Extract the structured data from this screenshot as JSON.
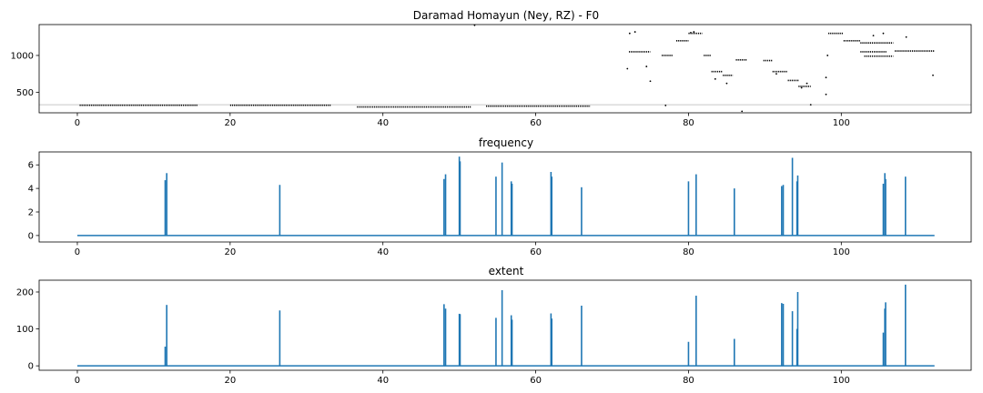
{
  "chart_data": [
    {
      "type": "scatter",
      "title": "Daramad Homayun (Ney, RZ) - F0",
      "xlabel": "",
      "ylabel": "",
      "xlim": [
        -5,
        117
      ],
      "ylim": [
        220,
        1420
      ],
      "xticks": [
        0,
        20,
        40,
        60,
        80,
        100
      ],
      "yticks": [
        500,
        1000
      ],
      "grid": false,
      "reference_line": 330,
      "segments": [
        {
          "x0": 0.3,
          "x1": 15.8,
          "y": 323
        },
        {
          "x0": 20.0,
          "x1": 33.2,
          "y": 323
        },
        {
          "x0": 36.6,
          "x1": 51.5,
          "y": 300
        },
        {
          "x0": 53.5,
          "x1": 67.1,
          "y": 310
        },
        {
          "x0": 72.2,
          "x1": 75.0,
          "y": 1050
        },
        {
          "x0": 76.5,
          "x1": 78.0,
          "y": 1000
        },
        {
          "x0": 78.4,
          "x1": 80.0,
          "y": 1200
        },
        {
          "x0": 80.0,
          "x1": 81.8,
          "y": 1300
        },
        {
          "x0": 82.0,
          "x1": 83.0,
          "y": 1000
        },
        {
          "x0": 83.0,
          "x1": 84.5,
          "y": 780
        },
        {
          "x0": 84.5,
          "x1": 85.8,
          "y": 730
        },
        {
          "x0": 86.2,
          "x1": 87.6,
          "y": 940
        },
        {
          "x0": 89.8,
          "x1": 91.0,
          "y": 930
        },
        {
          "x0": 91.0,
          "x1": 93.0,
          "y": 780
        },
        {
          "x0": 93.0,
          "x1": 94.4,
          "y": 660
        },
        {
          "x0": 94.4,
          "x1": 96.0,
          "y": 580
        },
        {
          "x0": 98.3,
          "x1": 100.3,
          "y": 1300
        },
        {
          "x0": 100.3,
          "x1": 102.5,
          "y": 1200
        },
        {
          "x0": 102.5,
          "x1": 106.8,
          "y": 1170
        },
        {
          "x0": 102.5,
          "x1": 106.0,
          "y": 1050
        },
        {
          "x0": 103.0,
          "x1": 106.8,
          "y": 990
        },
        {
          "x0": 107.0,
          "x1": 112.2,
          "y": 1060
        }
      ],
      "points": [
        {
          "x": 72.0,
          "y": 820
        },
        {
          "x": 72.3,
          "y": 1300
        },
        {
          "x": 73.0,
          "y": 1320
        },
        {
          "x": 74.5,
          "y": 850
        },
        {
          "x": 75.0,
          "y": 650
        },
        {
          "x": 77.0,
          "y": 320
        },
        {
          "x": 80.3,
          "y": 1310
        },
        {
          "x": 80.7,
          "y": 1320
        },
        {
          "x": 83.5,
          "y": 680
        },
        {
          "x": 85.0,
          "y": 620
        },
        {
          "x": 87.0,
          "y": 240
        },
        {
          "x": 91.5,
          "y": 750
        },
        {
          "x": 94.8,
          "y": 560
        },
        {
          "x": 95.5,
          "y": 620
        },
        {
          "x": 96.0,
          "y": 330
        },
        {
          "x": 98.0,
          "y": 470
        },
        {
          "x": 98.0,
          "y": 700
        },
        {
          "x": 98.2,
          "y": 1000
        },
        {
          "x": 104.2,
          "y": 1270
        },
        {
          "x": 105.5,
          "y": 1300
        },
        {
          "x": 108.5,
          "y": 1250
        },
        {
          "x": 112.0,
          "y": 730
        },
        {
          "x": 52.0,
          "y": 1410
        }
      ]
    },
    {
      "type": "line",
      "title": "frequency",
      "xlabel": "",
      "ylabel": "",
      "xlim": [
        -5,
        117
      ],
      "ylim": [
        -0.55,
        7.1
      ],
      "xticks": [
        0,
        20,
        40,
        60,
        80,
        100
      ],
      "yticks": [
        0,
        2,
        4,
        6
      ],
      "grid": false,
      "baseline": 0,
      "x_end": 112.2,
      "spikes": [
        {
          "x": 11.5,
          "value": 4.7
        },
        {
          "x": 11.7,
          "value": 5.3
        },
        {
          "x": 26.5,
          "value": 4.3
        },
        {
          "x": 48.0,
          "value": 4.8
        },
        {
          "x": 48.2,
          "value": 5.2
        },
        {
          "x": 50.0,
          "value": 6.7
        },
        {
          "x": 50.1,
          "value": 6.3
        },
        {
          "x": 54.8,
          "value": 5.0
        },
        {
          "x": 55.6,
          "value": 6.2
        },
        {
          "x": 56.8,
          "value": 4.6
        },
        {
          "x": 56.9,
          "value": 4.4
        },
        {
          "x": 62.0,
          "value": 5.4
        },
        {
          "x": 62.1,
          "value": 5.0
        },
        {
          "x": 66.0,
          "value": 4.1
        },
        {
          "x": 80.0,
          "value": 4.6
        },
        {
          "x": 81.0,
          "value": 5.2
        },
        {
          "x": 86.0,
          "value": 4.0
        },
        {
          "x": 92.2,
          "value": 4.2
        },
        {
          "x": 92.4,
          "value": 4.3
        },
        {
          "x": 93.6,
          "value": 6.6
        },
        {
          "x": 94.2,
          "value": 4.6
        },
        {
          "x": 94.3,
          "value": 5.1
        },
        {
          "x": 105.5,
          "value": 4.4
        },
        {
          "x": 105.7,
          "value": 5.3
        },
        {
          "x": 105.8,
          "value": 4.8
        },
        {
          "x": 108.4,
          "value": 5.0
        }
      ]
    },
    {
      "type": "line",
      "title": "extent",
      "xlabel": "",
      "ylabel": "",
      "xlim": [
        -5,
        117
      ],
      "ylim": [
        -12,
        232
      ],
      "xticks": [
        0,
        20,
        40,
        60,
        80,
        100
      ],
      "yticks": [
        0,
        100,
        200
      ],
      "grid": false,
      "baseline": 0,
      "x_end": 112.2,
      "spikes": [
        {
          "x": 11.5,
          "value": 52
        },
        {
          "x": 11.7,
          "value": 165
        },
        {
          "x": 26.5,
          "value": 150
        },
        {
          "x": 48.0,
          "value": 167
        },
        {
          "x": 48.2,
          "value": 155
        },
        {
          "x": 50.0,
          "value": 141
        },
        {
          "x": 50.1,
          "value": 140
        },
        {
          "x": 54.8,
          "value": 130
        },
        {
          "x": 55.6,
          "value": 205
        },
        {
          "x": 56.8,
          "value": 137
        },
        {
          "x": 56.9,
          "value": 125
        },
        {
          "x": 62.0,
          "value": 142
        },
        {
          "x": 62.1,
          "value": 128
        },
        {
          "x": 66.0,
          "value": 163
        },
        {
          "x": 80.0,
          "value": 65
        },
        {
          "x": 81.0,
          "value": 190
        },
        {
          "x": 86.0,
          "value": 73
        },
        {
          "x": 92.2,
          "value": 170
        },
        {
          "x": 92.4,
          "value": 168
        },
        {
          "x": 93.6,
          "value": 148
        },
        {
          "x": 94.2,
          "value": 100
        },
        {
          "x": 94.3,
          "value": 200
        },
        {
          "x": 105.5,
          "value": 90
        },
        {
          "x": 105.7,
          "value": 155
        },
        {
          "x": 105.8,
          "value": 172
        },
        {
          "x": 108.4,
          "value": 220
        }
      ]
    }
  ],
  "colors": {
    "line": "#1f77b4",
    "points": "#000000",
    "reference": "#c8c8c8",
    "frame": "#000000"
  }
}
